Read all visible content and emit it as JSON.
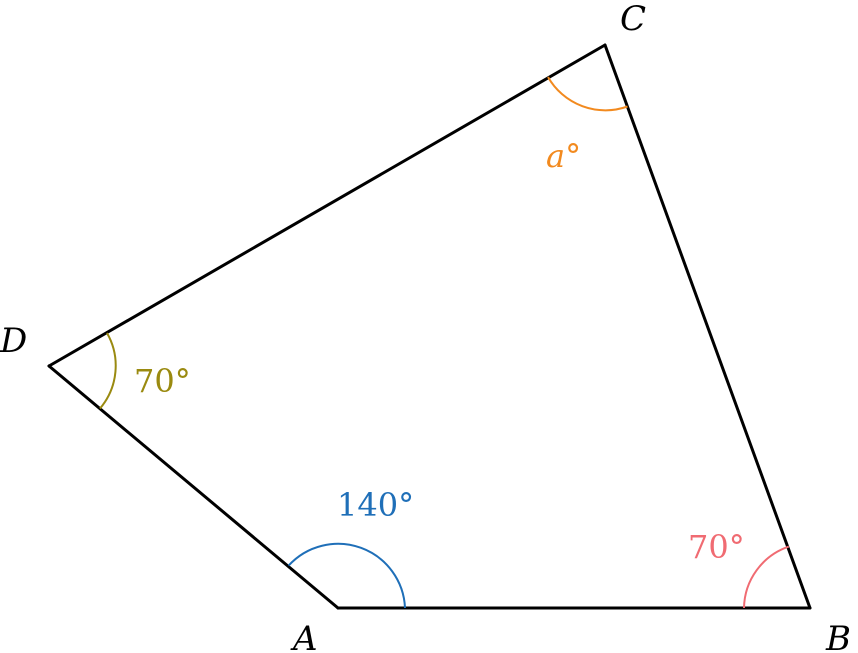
{
  "vertices": {
    "A": "A",
    "B": "B",
    "C": "C",
    "D": "D"
  },
  "angles": {
    "A": {
      "label": "140°",
      "color": "#1f6fb8"
    },
    "B": {
      "label": "70°",
      "color": "#f06b72"
    },
    "C": {
      "variable": "a",
      "degree": "°",
      "color": "#f28a1f"
    },
    "D": {
      "label": "70°",
      "color": "#9a8a10"
    }
  }
}
